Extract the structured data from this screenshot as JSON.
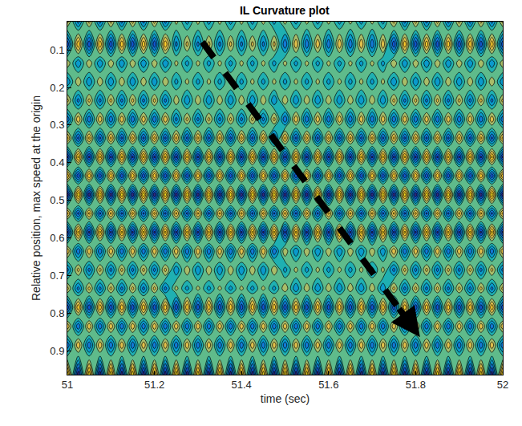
{
  "chart_data": {
    "type": "contour",
    "title": "IL Curvature plot",
    "x_label": "time (sec)",
    "y_label": "Relative position, max speed at the origin",
    "xlim": [
      51,
      52
    ],
    "xticks": [
      51,
      51.2,
      51.4,
      51.6,
      51.8,
      52
    ],
    "ylim": [
      0.964,
      0.025
    ],
    "yticks": [
      0.1,
      0.2,
      0.3,
      0.4,
      0.5,
      0.6,
      0.7,
      0.8,
      0.9
    ],
    "zlim": [
      -1,
      1.3
    ],
    "arrow": {
      "from": [
        51.31,
        0.079
      ],
      "to": [
        51.81,
        0.864
      ]
    },
    "x": [
      51,
      51.025,
      51.05,
      51.075,
      51.1,
      51.125,
      51.15,
      51.175,
      51.2,
      51.225,
      51.25,
      51.275,
      51.3,
      51.325,
      51.35,
      51.375,
      51.4,
      51.425,
      51.45,
      51.475,
      51.5,
      51.525,
      51.55,
      51.575,
      51.6,
      51.625,
      51.65,
      51.675,
      51.7,
      51.725,
      51.75,
      51.775,
      51.8,
      51.825,
      51.85,
      51.875,
      51.9,
      51.925,
      51.95,
      51.975,
      52
    ],
    "y": [
      0.025,
      0.085,
      0.135,
      0.185,
      0.235,
      0.285,
      0.335,
      0.385,
      0.435,
      0.485,
      0.535,
      0.585,
      0.635,
      0.685,
      0.735,
      0.785,
      0.835,
      0.885,
      0.964
    ],
    "z": [
      [
        0.5,
        -0.5,
        0.5,
        -0.5,
        0.5,
        -0.5,
        0.5,
        -0.5,
        0.5,
        -0.5,
        0.3,
        -0.3,
        0.3,
        -0.3,
        0.3,
        -0.3,
        0.3,
        -0.3,
        0.3,
        -0.3,
        0.3,
        -0.3,
        0.3,
        -0.3,
        0.3,
        -0.3,
        0.3,
        -0.3,
        0.3,
        -0.3,
        0.5,
        -0.5,
        0.5,
        -0.5,
        0.5,
        -0.5,
        0.5,
        -0.5,
        0.5,
        -0.5,
        0.5
      ],
      [
        -0.8,
        0.8,
        -0.8,
        0.8,
        -0.8,
        0.8,
        -0.8,
        0.8,
        -0.8,
        0.8,
        -0.5,
        0.5,
        -0.5,
        0.5,
        -0.5,
        0.5,
        -0.5,
        0.5,
        -0.5,
        0.5,
        -0.6,
        0.6,
        -0.6,
        0.6,
        -0.6,
        0.6,
        -0.6,
        0.6,
        -0.6,
        0.6,
        -0.8,
        0.8,
        -0.8,
        0.8,
        -0.8,
        0.8,
        -0.8,
        0.8,
        -0.8,
        0.8,
        -0.8
      ],
      [
        0.4,
        -0.4,
        0.4,
        -0.4,
        0.4,
        -0.4,
        0.4,
        -0.4,
        0.4,
        -0.4,
        0.3,
        -0.3,
        0.3,
        -0.3,
        0.3,
        -0.3,
        0.3,
        -0.3,
        0.3,
        -0.3,
        0.3,
        -0.3,
        0.3,
        -0.3,
        0.3,
        -0.3,
        0.3,
        -0.3,
        0.3,
        -0.3,
        0.4,
        -0.4,
        0.4,
        -0.4,
        0.4,
        -0.4,
        0.4,
        -0.4,
        0.4,
        -0.4,
        0.4
      ],
      [
        -0.4,
        0.4,
        -0.4,
        0.4,
        -0.4,
        0.4,
        -0.4,
        0.4,
        -0.4,
        0.4,
        -0.3,
        0.3,
        -0.3,
        0.3,
        -0.3,
        0.3,
        -0.3,
        0.3,
        -0.3,
        0.3,
        -0.3,
        0.3,
        -0.3,
        0.3,
        -0.3,
        0.3,
        -0.3,
        0.3,
        -0.3,
        0.3,
        -0.4,
        0.4,
        -0.4,
        0.4,
        -0.4,
        0.4,
        -0.4,
        0.4,
        -0.4,
        0.4,
        -0.4
      ],
      [
        0.5,
        -0.5,
        0.5,
        -0.5,
        0.5,
        -0.5,
        0.5,
        -0.5,
        0.5,
        -0.5,
        0.4,
        -0.4,
        0.4,
        -0.4,
        0.4,
        -0.4,
        0.4,
        -0.4,
        0.4,
        -0.4,
        0.4,
        -0.4,
        0.4,
        -0.4,
        0.4,
        -0.4,
        0.4,
        -0.4,
        0.4,
        -0.4,
        0.5,
        -0.5,
        0.5,
        -0.5,
        0.5,
        -0.5,
        0.5,
        -0.5,
        0.5,
        -0.5,
        0.5
      ],
      [
        -0.6,
        0.6,
        -0.6,
        0.6,
        -0.6,
        0.6,
        -0.6,
        0.6,
        -0.6,
        0.6,
        -0.5,
        0.5,
        -0.5,
        0.5,
        -0.5,
        0.5,
        -0.5,
        0.5,
        -0.5,
        0.5,
        -0.6,
        0.6,
        -0.6,
        0.6,
        -0.6,
        0.6,
        -0.6,
        0.6,
        -0.6,
        0.6,
        -0.6,
        0.6,
        -0.6,
        0.6,
        -0.6,
        0.6,
        -0.6,
        0.6,
        -0.6,
        0.6,
        -0.6
      ],
      [
        0.7,
        -0.7,
        0.7,
        -0.7,
        0.7,
        -0.7,
        0.7,
        -0.7,
        0.7,
        -0.7,
        0.7,
        -0.7,
        0.7,
        -0.7,
        0.7,
        -0.7,
        0.7,
        -0.7,
        0.7,
        -0.7,
        0.7,
        -0.7,
        0.7,
        -0.7,
        0.7,
        -0.7,
        0.7,
        -0.7,
        0.7,
        -0.7,
        0.7,
        -0.7,
        0.7,
        -0.7,
        0.7,
        -0.7,
        0.7,
        -0.7,
        0.7,
        -0.7,
        0.7
      ],
      [
        -0.9,
        0.9,
        -0.9,
        0.9,
        -0.9,
        0.9,
        -0.9,
        0.9,
        -0.9,
        0.9,
        -0.9,
        0.9,
        -0.9,
        0.9,
        -0.9,
        0.9,
        -0.9,
        0.9,
        -0.9,
        0.9,
        -0.9,
        0.9,
        -0.9,
        0.9,
        -0.9,
        0.9,
        -0.9,
        0.9,
        -0.9,
        0.9,
        -0.9,
        0.9,
        -0.9,
        0.9,
        -0.9,
        0.9,
        -0.9,
        0.9,
        -0.9,
        0.9,
        -0.9
      ],
      [
        0.8,
        -0.8,
        0.8,
        -0.8,
        0.8,
        -0.8,
        0.8,
        -0.8,
        0.8,
        -0.8,
        0.8,
        -0.8,
        0.8,
        -0.8,
        0.8,
        -0.8,
        0.8,
        -0.8,
        0.8,
        -0.8,
        0.8,
        -0.8,
        0.8,
        -0.8,
        0.8,
        -0.8,
        0.8,
        -0.8,
        0.8,
        -0.8,
        0.8,
        -0.8,
        0.8,
        -0.8,
        0.8,
        -0.8,
        0.8,
        -0.8,
        0.8,
        -0.8,
        0.8
      ],
      [
        -1.0,
        1.0,
        -1.0,
        1.0,
        -1.0,
        1.0,
        -1.0,
        1.0,
        -1.0,
        1.0,
        -1.0,
        1.0,
        -1.0,
        1.0,
        -1.0,
        1.0,
        -1.0,
        1.0,
        -1.0,
        1.0,
        -1.0,
        1.0,
        -1.0,
        1.0,
        -1.0,
        1.0,
        -1.0,
        1.0,
        -1.0,
        1.0,
        -1.0,
        1.0,
        -1.0,
        1.0,
        -1.0,
        1.0,
        -1.0,
        1.0,
        -1.0,
        1.0,
        -1.0
      ],
      [
        0.7,
        -0.7,
        0.7,
        -0.7,
        0.7,
        -0.7,
        0.7,
        -0.7,
        0.7,
        -0.7,
        0.7,
        -0.7,
        0.7,
        -0.7,
        0.7,
        -0.7,
        0.7,
        -0.7,
        0.7,
        -0.7,
        0.7,
        -0.7,
        0.7,
        -0.7,
        0.7,
        -0.7,
        0.7,
        -0.7,
        0.7,
        -0.7,
        0.7,
        -0.7,
        0.7,
        -0.7,
        0.7,
        -0.7,
        0.7,
        -0.7,
        0.7,
        -0.7,
        0.7
      ],
      [
        -0.9,
        0.9,
        -0.9,
        0.9,
        -0.9,
        0.9,
        -0.9,
        0.9,
        -0.9,
        0.9,
        -0.9,
        0.9,
        -0.9,
        0.9,
        -0.9,
        0.9,
        -0.9,
        0.9,
        -0.9,
        0.9,
        -0.9,
        0.9,
        -0.9,
        0.9,
        -0.9,
        0.9,
        -0.9,
        0.9,
        -0.9,
        0.9,
        -0.9,
        0.9,
        -0.9,
        0.9,
        -0.9,
        0.9,
        -0.9,
        0.9,
        -0.9,
        0.9,
        -0.9
      ],
      [
        0.6,
        -0.6,
        0.6,
        -0.6,
        0.6,
        -0.6,
        0.6,
        -0.6,
        0.6,
        -0.6,
        0.6,
        -0.6,
        0.6,
        -0.6,
        0.6,
        -0.6,
        0.6,
        -0.6,
        0.6,
        -0.6,
        0.4,
        -0.4,
        0.4,
        -0.4,
        0.4,
        -0.4,
        0.4,
        -0.4,
        0.4,
        -0.4,
        0.6,
        -0.6,
        0.6,
        -0.6,
        0.6,
        -0.6,
        0.6,
        -0.6,
        0.6,
        -0.6,
        0.6
      ],
      [
        -0.5,
        0.5,
        -0.5,
        0.5,
        -0.5,
        0.5,
        -0.5,
        0.5,
        -0.5,
        0.5,
        -0.4,
        0.4,
        -0.4,
        0.4,
        -0.4,
        0.4,
        -0.4,
        0.4,
        -0.4,
        0.4,
        -0.3,
        0.3,
        -0.3,
        0.3,
        -0.3,
        0.3,
        -0.3,
        0.3,
        -0.3,
        0.3,
        -0.5,
        0.5,
        -0.5,
        0.5,
        -0.5,
        0.5,
        -0.5,
        0.5,
        -0.5,
        0.5,
        -0.5
      ],
      [
        0.5,
        -0.5,
        0.5,
        -0.5,
        0.5,
        -0.5,
        0.5,
        -0.5,
        0.5,
        -0.5,
        0.3,
        -0.3,
        0.3,
        -0.3,
        0.3,
        -0.3,
        0.3,
        -0.3,
        0.3,
        -0.3,
        0.4,
        -0.4,
        0.4,
        -0.4,
        0.4,
        -0.4,
        0.4,
        -0.4,
        0.4,
        -0.4,
        0.5,
        -0.5,
        0.5,
        -0.5,
        0.5,
        -0.5,
        0.5,
        -0.5,
        0.5,
        -0.5,
        0.5
      ],
      [
        -0.8,
        0.8,
        -0.8,
        0.8,
        -0.8,
        0.8,
        -0.8,
        0.8,
        -0.8,
        0.8,
        -0.8,
        0.8,
        -0.8,
        0.8,
        -0.8,
        0.8,
        -0.8,
        0.8,
        -0.8,
        0.8,
        -0.8,
        0.8,
        -0.8,
        0.8,
        -0.8,
        0.8,
        -0.8,
        0.8,
        -0.8,
        0.8,
        -0.8,
        0.8,
        -0.8,
        0.8,
        -0.8,
        0.8,
        -0.8,
        0.8,
        -0.8,
        0.8,
        -0.8
      ],
      [
        0.6,
        -0.6,
        0.6,
        -0.6,
        0.6,
        -0.6,
        0.6,
        -0.6,
        0.6,
        -0.6,
        0.6,
        -0.6,
        0.6,
        -0.6,
        0.6,
        -0.6,
        0.6,
        -0.6,
        0.6,
        -0.6,
        0.6,
        -0.6,
        0.6,
        -0.6,
        0.6,
        -0.6,
        0.6,
        -0.6,
        0.6,
        -0.6,
        0.6,
        -0.6,
        0.6,
        -0.6,
        0.6,
        -0.6,
        0.6,
        -0.6,
        0.6,
        -0.6,
        0.6
      ],
      [
        -0.6,
        0.6,
        -0.6,
        0.6,
        -0.6,
        0.6,
        -0.6,
        0.6,
        -0.6,
        0.6,
        -0.6,
        0.6,
        -0.6,
        0.6,
        -0.6,
        0.6,
        -0.6,
        0.6,
        -0.6,
        0.6,
        -0.6,
        0.6,
        -0.6,
        0.6,
        -0.6,
        0.6,
        -0.6,
        0.6,
        -0.6,
        0.6,
        -0.6,
        0.6,
        -0.6,
        0.6,
        -0.6,
        0.6,
        -0.6,
        0.6,
        -0.6,
        0.6,
        -0.6
      ],
      [
        1.0,
        -1.0,
        1.0,
        -1.0,
        1.0,
        -1.0,
        1.0,
        -1.0,
        1.0,
        -1.0,
        1.0,
        -1.0,
        1.0,
        -1.0,
        1.0,
        -1.0,
        1.0,
        -1.0,
        1.0,
        -1.0,
        1.0,
        -1.0,
        1.0,
        -1.0,
        1.0,
        -1.0,
        1.0,
        -1.0,
        1.0,
        -1.0,
        1.0,
        -1.0,
        1.0,
        -1.0,
        1.0,
        -1.0,
        1.0,
        -1.0,
        1.0,
        -1.0,
        1.0
      ]
    ]
  }
}
